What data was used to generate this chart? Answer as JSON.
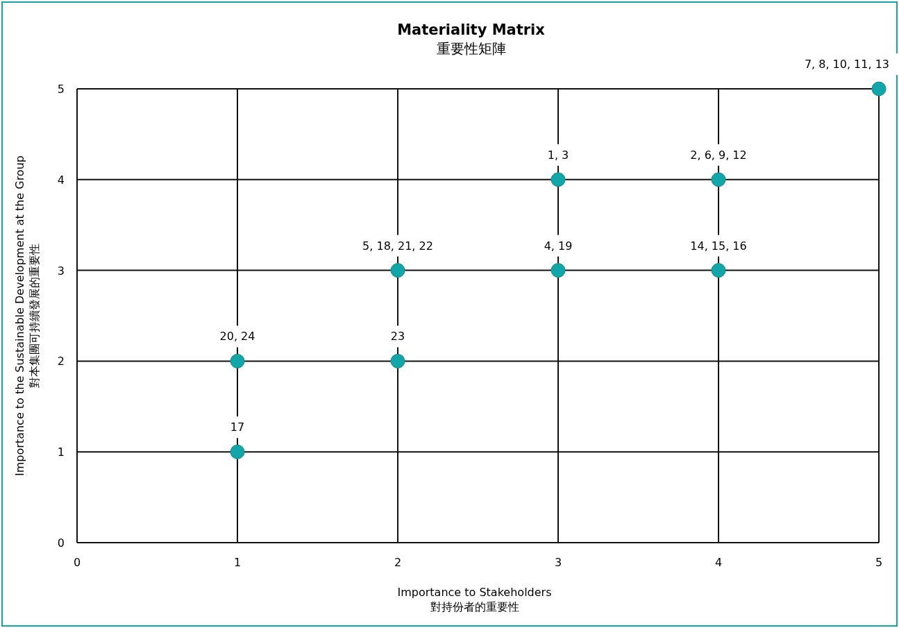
{
  "chart_data": {
    "type": "scatter",
    "title": "Materiality Matrix",
    "subtitle": "重要性矩陣",
    "xlabel": "Importance to Stakeholders\n對持份者的重要性",
    "ylabel": "Importance to the Sustainable Development at the Group\n對本集團可持續發展的重要性",
    "x": [
      1,
      1,
      2,
      2,
      3,
      3,
      4,
      4,
      5
    ],
    "series": [
      {
        "color": "#13a6a8",
        "values": [
          1,
          2,
          2,
          3,
          3,
          4,
          4,
          3,
          5
        ]
      }
    ],
    "annotations": [
      {
        "text": "17",
        "x": 1,
        "y": 1
      },
      {
        "text": "20, 24",
        "x": 1,
        "y": 2
      },
      {
        "text": "23",
        "x": 2,
        "y": 2
      },
      {
        "text": "5, 18, 21, 22",
        "x": 2,
        "y": 3
      },
      {
        "text": "4, 19",
        "x": 3,
        "y": 3
      },
      {
        "text": "1, 3",
        "x": 3,
        "y": 4
      },
      {
        "text": "2, 6, 9, 12",
        "x": 4,
        "y": 4
      },
      {
        "text": "14, 15, 16",
        "x": 4,
        "y": 3
      },
      {
        "text": "7, 8, 10, 11, 13",
        "x": 5,
        "y": 5
      }
    ],
    "xlim": [
      0,
      5
    ],
    "ylim": [
      0,
      5
    ],
    "xticks": [
      0,
      1,
      2,
      3,
      4,
      5
    ],
    "yticks": [
      0,
      1,
      2,
      3,
      4,
      5
    ],
    "grid": true,
    "marker": "circle"
  }
}
